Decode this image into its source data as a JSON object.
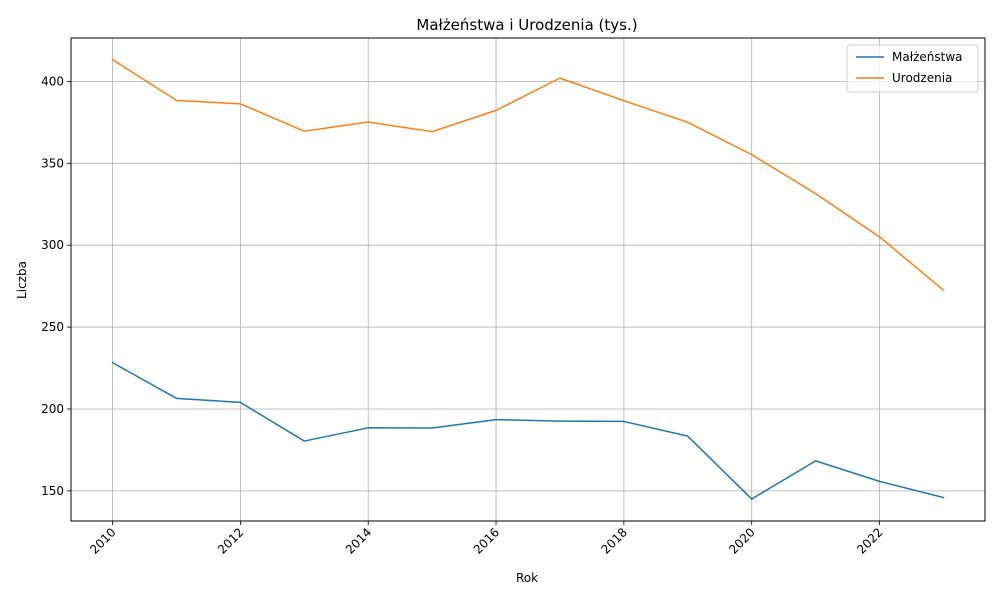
{
  "chart_data": {
    "type": "line",
    "title": "Małżeństwa i Urodzenia (tys.)",
    "xlabel": "Rok",
    "ylabel": "Liczba",
    "x": [
      2010,
      2011,
      2012,
      2013,
      2014,
      2015,
      2016,
      2017,
      2018,
      2019,
      2020,
      2021,
      2022,
      2023
    ],
    "xlim": [
      2009.35,
      2023.65
    ],
    "ylim": [
      131.6,
      426.5
    ],
    "x_ticks": [
      "2010",
      "2012",
      "2014",
      "2016",
      "2018",
      "2020",
      "2022"
    ],
    "x_tick_values": [
      2010,
      2012,
      2014,
      2016,
      2018,
      2020,
      2022
    ],
    "y_ticks": [
      "150",
      "200",
      "250",
      "300",
      "350",
      "400"
    ],
    "y_tick_values": [
      150,
      200,
      250,
      300,
      350,
      400
    ],
    "grid": true,
    "legend_position": "top-right",
    "series": [
      {
        "name": "Małżeństwa",
        "color": "#1f77b4",
        "values": [
          228.3,
          206.5,
          204.0,
          180.4,
          188.5,
          188.4,
          193.5,
          192.6,
          192.4,
          183.4,
          145.0,
          168.3,
          155.8,
          145.9
        ]
      },
      {
        "name": "Urodzenia",
        "color": "#ff7f0e",
        "values": [
          413.3,
          388.4,
          386.3,
          369.6,
          375.2,
          369.3,
          382.3,
          402.0,
          388.2,
          375.0,
          355.3,
          331.5,
          305.1,
          272.5
        ]
      }
    ]
  }
}
